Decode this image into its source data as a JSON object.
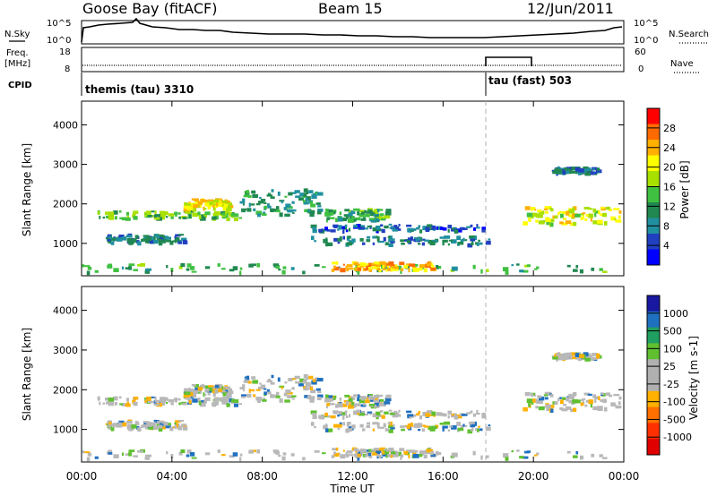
{
  "header": {
    "station": "Goose Bay (fitACF)",
    "beam": "Beam 15",
    "date": "12/Jun/2011"
  },
  "noise_panel": {
    "left_label": "N.Sky",
    "right_label": "N.Search",
    "left_ticks": [
      "10^5",
      "10^0"
    ],
    "right_ticks": [
      "10^5",
      "10^0"
    ]
  },
  "freq_panel": {
    "left_label_1": "Freq.",
    "left_label_2": "[MHz]",
    "left_ticks": [
      "18",
      "8"
    ],
    "right_label": "Nave",
    "right_ticks": [
      "60",
      "0"
    ]
  },
  "cpid_panel": {
    "label": "CPID",
    "segments": [
      {
        "name": "themis (tau) 3310",
        "start_hour": 0,
        "end_hour": 18
      },
      {
        "name": "tau (fast) 503",
        "start_hour": 18,
        "end_hour": 24
      }
    ]
  },
  "power_panel": {
    "ylabel": "Slant Range [km]",
    "colorbar_label": "Power [dB]",
    "colorbar_ticks": [
      "28",
      "24",
      "20",
      "16",
      "12",
      "8",
      "4"
    ],
    "colorbar_colors": [
      "#ff0000",
      "#ff6a00",
      "#ffb000",
      "#ffff00",
      "#a8e000",
      "#40c040",
      "#208850",
      "#2090a0",
      "#2040c0",
      "#0000ff"
    ]
  },
  "velocity_panel": {
    "ylabel": "Slant Range [km]",
    "colorbar_label": "Velocity [m s-1]",
    "colorbar_ticks": [
      "1000",
      "500",
      "100",
      "25",
      "-25",
      "-100",
      "-500",
      "-1000"
    ],
    "colorbar_colors": [
      "#1818a0",
      "#2070c0",
      "#20a060",
      "#60c030",
      "#b0b0b0",
      "#b0b0b0",
      "#ffb000",
      "#ff7000",
      "#ff3000",
      "#e00000"
    ]
  },
  "xaxis": {
    "label": "Time UT",
    "ticks": [
      "00:00",
      "04:00",
      "08:00",
      "12:00",
      "16:00",
      "20:00",
      "00:00"
    ]
  },
  "chart_data": {
    "type": "heatmap",
    "title": "Goose Bay (fitACF)",
    "subtitle": "Beam 15  12/Jun/2011",
    "xlabel": "Time UT",
    "ylabel": "Slant Range [km]",
    "xlim_hours": [
      0,
      24
    ],
    "ylim_km": [
      180,
      4600
    ],
    "y_ticks": [
      1000,
      2000,
      3000,
      4000
    ],
    "cpid_change_hour": 18,
    "power_scale_db": [
      0,
      30
    ],
    "velocity_scale": [
      -1000,
      1000
    ],
    "scatter_regions": [
      {
        "t0": 0.7,
        "t1": 7.0,
        "r0": 1650,
        "r1": 1850,
        "power_db": 14
      },
      {
        "t0": 4.5,
        "t1": 6.5,
        "r0": 1900,
        "r1": 2150,
        "power_db": 20
      },
      {
        "t0": 7.0,
        "t1": 10.5,
        "r0": 1750,
        "r1": 2400,
        "power_db": 10
      },
      {
        "t0": 10.5,
        "t1": 13.5,
        "r0": 1600,
        "r1": 1900,
        "power_db": 12
      },
      {
        "t0": 1.0,
        "t1": 4.5,
        "r0": 1050,
        "r1": 1250,
        "power_db": 8
      },
      {
        "t0": 10.0,
        "t1": 18.0,
        "r0": 1350,
        "r1": 1500,
        "power_db": 6
      },
      {
        "t0": 10.0,
        "t1": 18.0,
        "r0": 1000,
        "r1": 1200,
        "power_db": 8
      },
      {
        "t0": 0.0,
        "t1": 24.0,
        "r0": 300,
        "r1": 500,
        "power_db": 12
      },
      {
        "t0": 11.0,
        "t1": 15.5,
        "r0": 350,
        "r1": 550,
        "power_db": 22
      },
      {
        "t0": 19.5,
        "t1": 23.8,
        "r0": 1500,
        "r1": 1950,
        "power_db": 18
      },
      {
        "t0": 20.8,
        "t1": 22.8,
        "r0": 2800,
        "r1": 2950,
        "power_db": 8
      }
    ]
  }
}
